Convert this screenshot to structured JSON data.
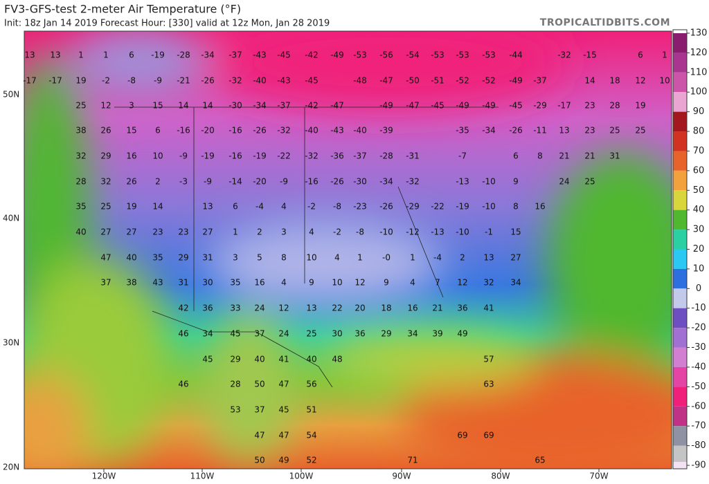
{
  "header": {
    "title": "FV3-GFS-test 2-meter Air Temperature (°F)",
    "info": "Init: 18z Jan 14 2019   Forecast Hour: [330]   valid at 12z Mon, Jan 28 2019",
    "site": "TROPICALTIDBITS.COM"
  },
  "axes": {
    "longitudes": [
      "120W",
      "110W",
      "100W",
      "90W",
      "80W",
      "70W"
    ],
    "latitudes": [
      "50N",
      "40N",
      "30N",
      "20N"
    ]
  },
  "colorbar": {
    "ticks": [
      130,
      120,
      110,
      100,
      90,
      80,
      70,
      60,
      50,
      40,
      30,
      20,
      10,
      0,
      -10,
      -20,
      -30,
      -40,
      -50,
      -60,
      -70,
      -80,
      -90
    ],
    "colors": [
      "#8a1d6e",
      "#aa3590",
      "#cc55aa",
      "#eaa5d2",
      "#a3181e",
      "#d23222",
      "#e8622c",
      "#f2a13c",
      "#d9d63c",
      "#4fb82f",
      "#2ad0a2",
      "#2ac8f2",
      "#2e6fe0",
      "#c2c9ea",
      "#6d4fc2",
      "#a070d2",
      "#d27fd2",
      "#e444a4",
      "#f0207a",
      "#c03285",
      "#8f92a2",
      "#c4c4c4",
      "#f2e2f2"
    ]
  },
  "map": {
    "labels": [
      13,
      13,
      1,
      1,
      6,
      -19,
      -28,
      -34,
      -37,
      -43,
      -45,
      -42,
      -49,
      -53,
      -56,
      -54,
      -53,
      -53,
      -53,
      -44,
      -32,
      -15,
      6,
      1,
      -17,
      -17,
      19,
      -2,
      -8,
      -9,
      -21,
      -26,
      -32,
      -40,
      -43,
      -45,
      -48,
      -47,
      -50,
      -51,
      -52,
      -52,
      -49,
      -37,
      14,
      18,
      12,
      10,
      25,
      12,
      3,
      15,
      14,
      14,
      -30,
      -34,
      -37,
      -42,
      -47,
      -49,
      -47,
      -45,
      -49,
      -49,
      -45,
      -29,
      -17,
      23,
      28,
      19,
      38,
      26,
      15,
      6,
      -16,
      -20,
      -16,
      -26,
      -32,
      -40,
      -43,
      -40,
      -39,
      -35,
      -34,
      -26,
      -11,
      13,
      23,
      25,
      25,
      32,
      29,
      16,
      10,
      -9,
      -19,
      -16,
      -19,
      -22,
      -32,
      -36,
      -37,
      -28,
      -31,
      -7,
      6,
      8,
      21,
      21,
      31,
      28,
      32,
      26,
      2,
      -3,
      -9,
      -14,
      -20,
      -9,
      -16,
      -26,
      -30,
      -34,
      -32,
      -13,
      -10,
      9,
      24,
      25,
      35,
      25,
      19,
      14,
      13,
      6,
      -4,
      4,
      -2,
      -8,
      -23,
      -26,
      -29,
      -22,
      -19,
      -10,
      8,
      16,
      40,
      27,
      27,
      23,
      23,
      27,
      1,
      2,
      3,
      4,
      -2,
      -8,
      -10,
      -12,
      -13,
      -10,
      -1,
      15,
      47,
      40,
      35,
      29,
      31,
      3,
      5,
      8,
      10,
      4,
      1,
      {
        "value": 0,
        "label": "-0"
      },
      1,
      -4,
      2,
      13,
      27,
      37,
      38,
      43,
      31,
      30,
      35,
      16,
      4,
      9,
      10,
      12,
      9,
      4,
      7,
      12,
      32,
      34,
      42,
      36,
      33,
      24,
      12,
      13,
      22,
      20,
      18,
      16,
      21,
      36,
      41,
      46,
      34,
      45,
      37,
      24,
      25,
      30,
      36,
      29,
      34,
      39,
      49,
      45,
      29,
      40,
      41,
      40,
      48,
      57,
      46,
      28,
      50,
      47,
      56,
      63,
      53,
      37,
      45,
      51,
      47,
      47,
      54,
      69,
      69,
      50,
      49,
      52,
      71,
      65
    ]
  }
}
